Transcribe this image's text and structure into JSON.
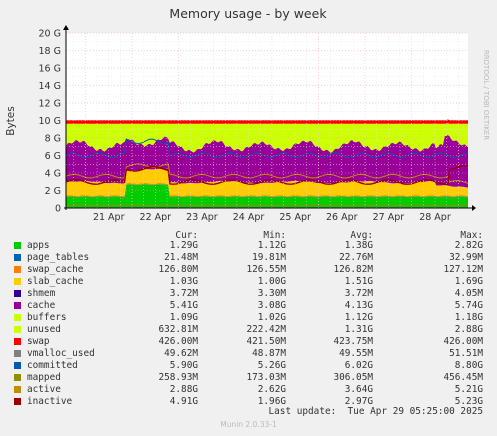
{
  "chart_data": {
    "type": "area",
    "title": "Memory usage - by week",
    "ylabel": "Bytes",
    "watermark": "RRDTOOL / TOBI OETIKER",
    "ylim": [
      0,
      20
    ],
    "y_unit": "G",
    "grid": true,
    "yticks": [
      "0",
      "2 G",
      "4 G",
      "6 G",
      "8 G",
      "10 G",
      "12 G",
      "14 G",
      "16 G",
      "18 G",
      "20 G"
    ],
    "xticks": [
      "21 Apr",
      "22 Apr",
      "23 Apr",
      "24 Apr",
      "25 Apr",
      "26 Apr",
      "27 Apr",
      "28 Apr"
    ],
    "x_start": "2025-04-20 14:00",
    "x_end": "2025-04-29 05:00",
    "legend_headers": {
      "cur": "Cur:",
      "min": "Min:",
      "avg": "Avg:",
      "max": "Max:"
    },
    "series": [
      {
        "name": "apps",
        "color": "#00cc00",
        "cur": "1.29G",
        "min": "1.12G",
        "avg": "1.38G",
        "max": "2.82G"
      },
      {
        "name": "page_tables",
        "color": "#0066b3",
        "cur": "21.48M",
        "min": "19.81M",
        "avg": "22.76M",
        "max": "32.99M"
      },
      {
        "name": "swap_cache",
        "color": "#ff8000",
        "cur": "126.80M",
        "min": "126.55M",
        "avg": "126.82M",
        "max": "127.12M"
      },
      {
        "name": "slab_cache",
        "color": "#ffcc00",
        "cur": "1.03G",
        "min": "1.00G",
        "avg": "1.51G",
        "max": "1.69G"
      },
      {
        "name": "shmem",
        "color": "#330099",
        "cur": "3.72M",
        "min": "3.30M",
        "avg": "3.72M",
        "max": "4.05M"
      },
      {
        "name": "cache",
        "color": "#990099",
        "cur": "5.41G",
        "min": "3.08G",
        "avg": "4.13G",
        "max": "5.74G"
      },
      {
        "name": "buffers",
        "color": "#ccff00",
        "cur": "1.09G",
        "min": "1.02G",
        "avg": "1.12G",
        "max": "1.18G"
      },
      {
        "name": "unused",
        "color": "#ccff00",
        "cur": "632.81M",
        "min": "222.42M",
        "avg": "1.31G",
        "max": "2.88G"
      },
      {
        "name": "swap",
        "color": "#ff0000",
        "cur": "426.00M",
        "min": "421.50M",
        "avg": "423.75M",
        "max": "426.00M"
      },
      {
        "name": "vmalloc_used",
        "color": "#808080",
        "cur": "49.62M",
        "min": "48.87M",
        "avg": "49.55M",
        "max": "51.51M"
      },
      {
        "name": "committed",
        "color": "#005ab4",
        "cur": "5.90G",
        "min": "5.26G",
        "avg": "6.02G",
        "max": "8.80G"
      },
      {
        "name": "mapped",
        "color": "#8f8f00",
        "cur": "258.93M",
        "min": "173.03M",
        "avg": "306.05M",
        "max": "456.45M"
      },
      {
        "name": "active",
        "color": "#bf8f00",
        "cur": "2.88G",
        "min": "2.62G",
        "avg": "3.64G",
        "max": "5.21G"
      },
      {
        "name": "inactive",
        "color": "#990000",
        "cur": "4.91G",
        "min": "1.96G",
        "avg": "2.97G",
        "max": "5.23G"
      }
    ]
  },
  "footer": {
    "last_update": "Last update:  Tue Apr 29 05:25:00 2025",
    "version": "Munin 2.0.33-1"
  }
}
